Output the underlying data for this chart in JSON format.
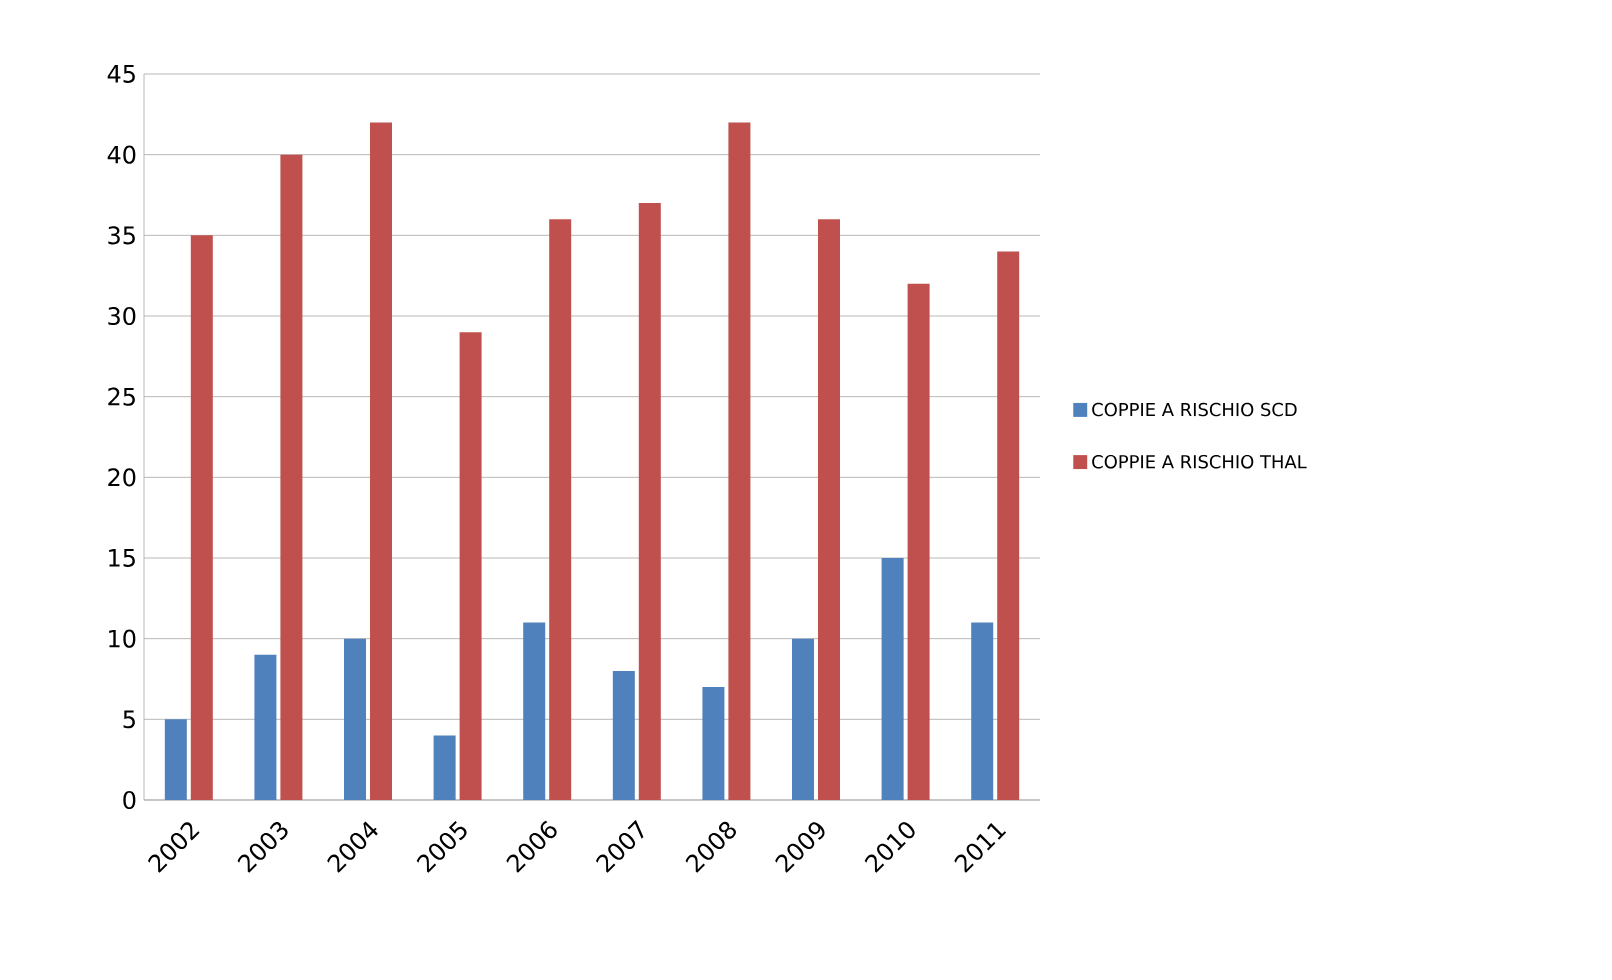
{
  "chart_data": {
    "type": "bar",
    "categories": [
      "2002",
      "2003",
      "2004",
      "2005",
      "2006",
      "2007",
      "2008",
      "2009",
      "2010",
      "2011"
    ],
    "series": [
      {
        "name": "COPPIE A RISCHIO SCD",
        "color": "#4f81bd",
        "values": [
          5,
          9,
          10,
          4,
          11,
          8,
          7,
          10,
          15,
          11
        ]
      },
      {
        "name": "COPPIE A RISCHIO THAL",
        "color": "#c0504d",
        "values": [
          35,
          40,
          42,
          29,
          36,
          37,
          42,
          36,
          32,
          34
        ]
      }
    ],
    "ylim": [
      0,
      45
    ],
    "yticks": [
      0,
      5,
      10,
      15,
      20,
      25,
      30,
      35,
      40,
      45
    ],
    "grid": "y",
    "legend": "right"
  }
}
